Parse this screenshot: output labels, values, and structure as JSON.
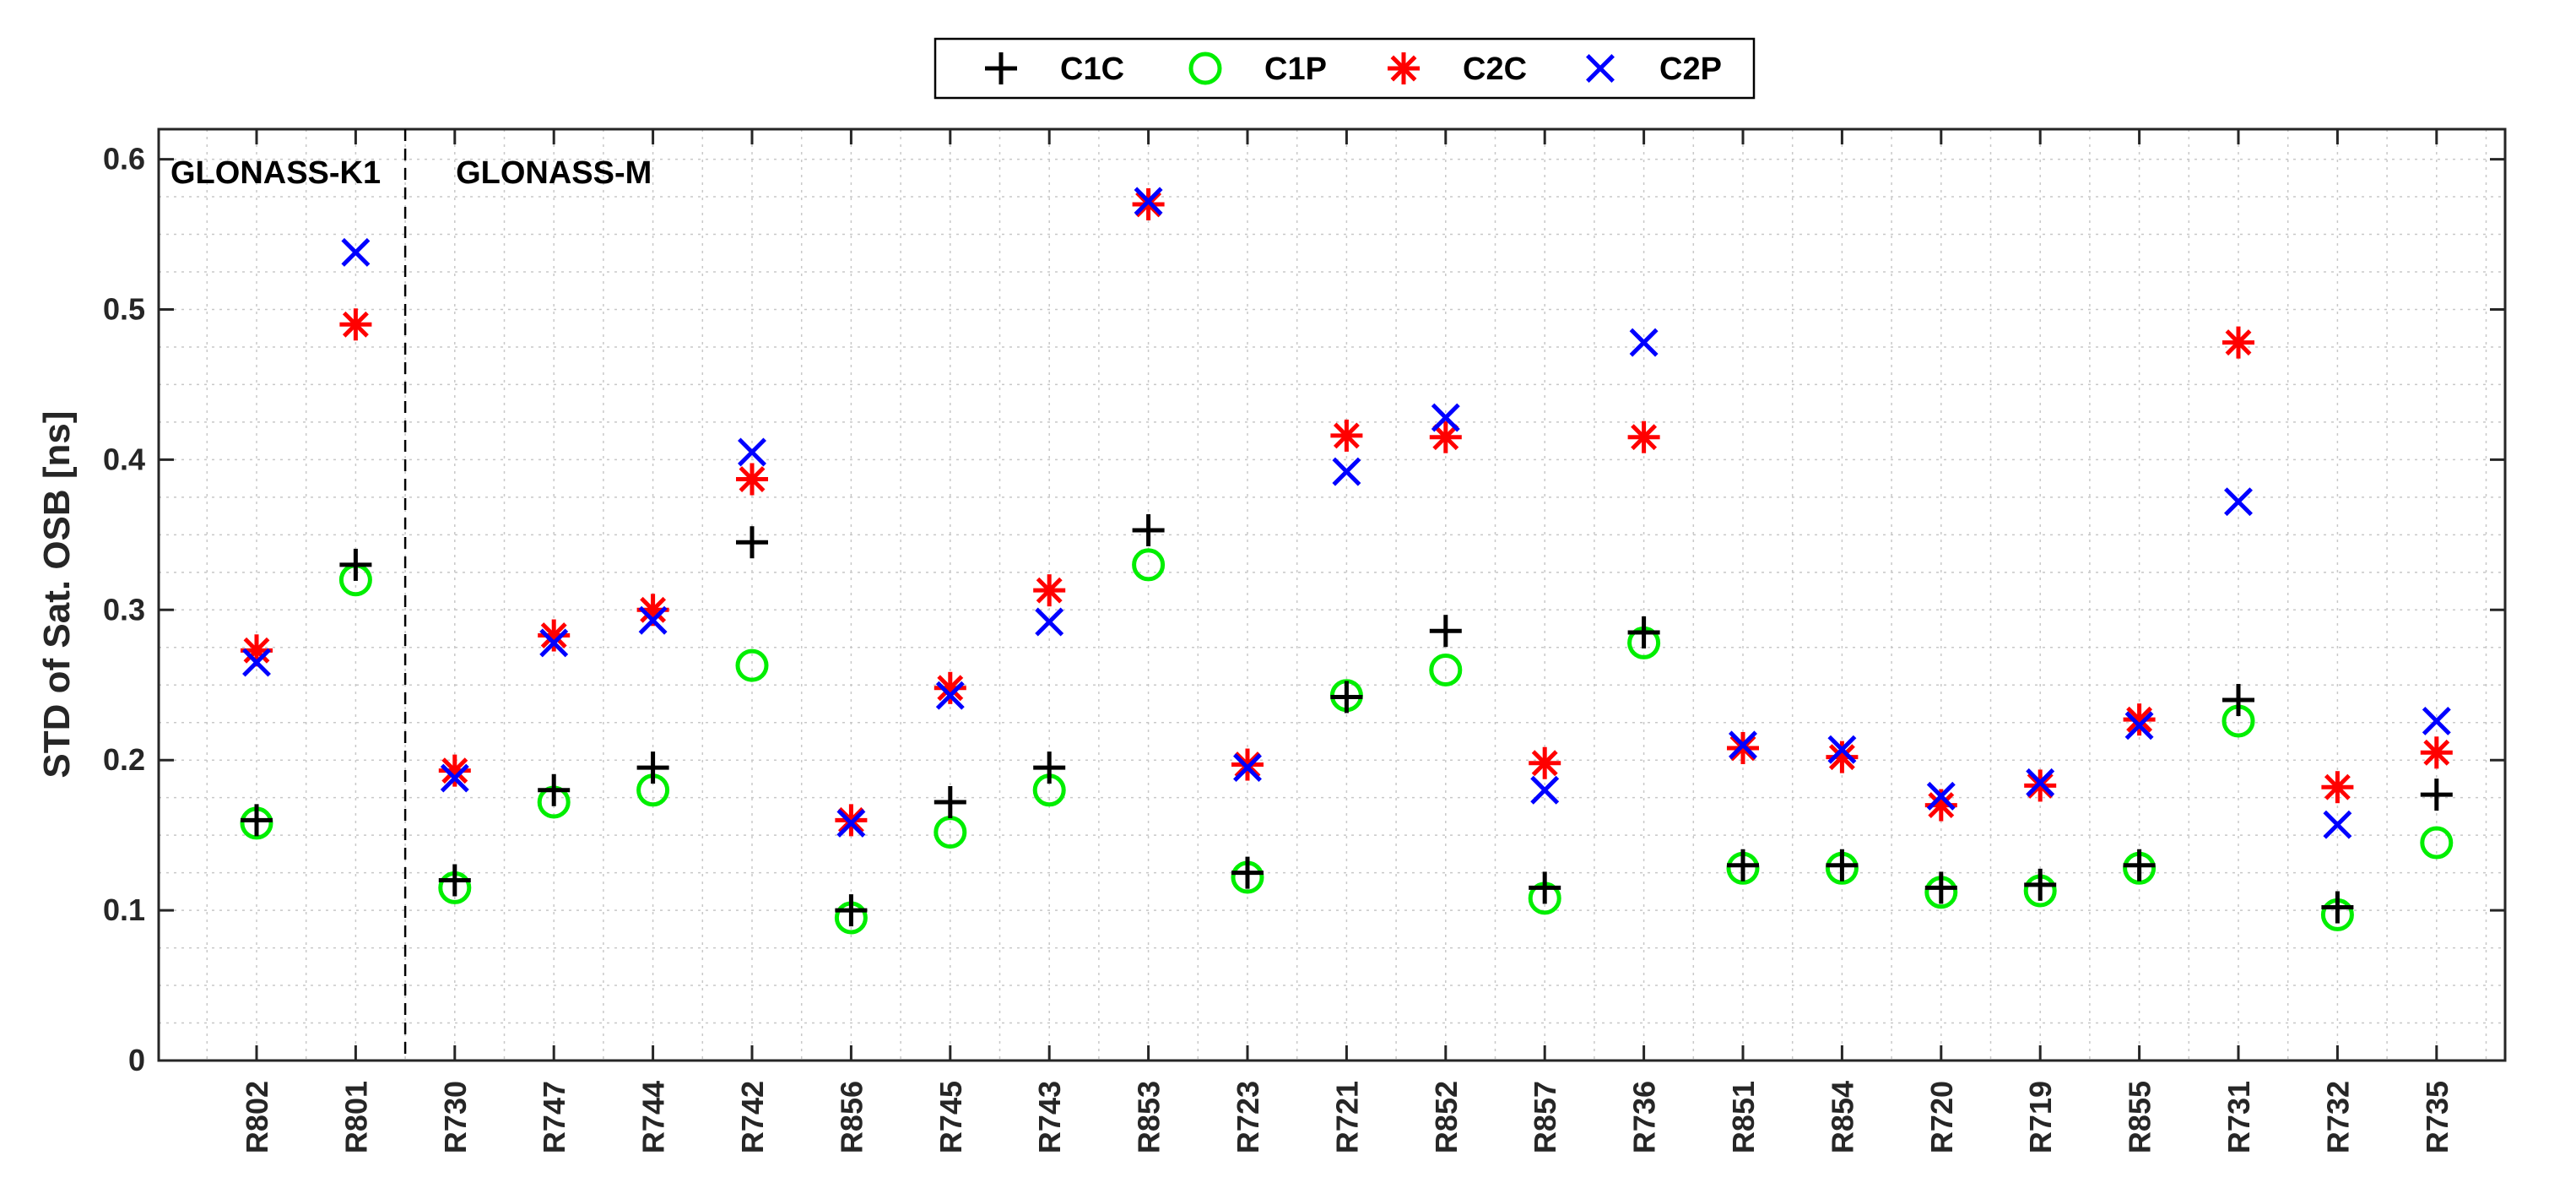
{
  "chart_data": {
    "type": "scatter",
    "title": "",
    "xlabel": "",
    "ylabel": "STD of Sat. OSB [ns]",
    "ylim": [
      0,
      0.62
    ],
    "yticks": [
      "0",
      "0.1",
      "0.2",
      "0.3",
      "0.4",
      "0.5",
      "0.6"
    ],
    "grid": true,
    "legend_position": "top-center",
    "categories": [
      "R802",
      "R801",
      "R730",
      "R747",
      "R744",
      "R742",
      "R856",
      "R745",
      "R743",
      "R853",
      "R723",
      "R721",
      "R852",
      "R857",
      "R736",
      "R851",
      "R854",
      "R720",
      "R719",
      "R855",
      "R731",
      "R732",
      "R735"
    ],
    "series": [
      {
        "name": "C1C",
        "marker": "plus",
        "color": "#000000",
        "values": [
          0.16,
          0.33,
          0.12,
          0.18,
          0.195,
          0.345,
          0.1,
          0.172,
          0.195,
          0.353,
          0.125,
          0.242,
          0.286,
          0.115,
          0.285,
          0.13,
          0.13,
          0.115,
          0.117,
          0.13,
          0.24,
          0.102,
          0.177
        ]
      },
      {
        "name": "C1P",
        "marker": "circle",
        "color": "#00ee00",
        "values": [
          0.158,
          0.32,
          0.115,
          0.172,
          0.18,
          0.263,
          0.095,
          0.152,
          0.18,
          0.33,
          0.122,
          0.243,
          0.26,
          0.108,
          0.278,
          0.128,
          0.128,
          0.112,
          0.113,
          0.128,
          0.226,
          0.097,
          0.145
        ]
      },
      {
        "name": "C2C",
        "marker": "asterisk",
        "color": "#ff0000",
        "values": [
          0.273,
          0.49,
          0.193,
          0.283,
          0.3,
          0.387,
          0.16,
          0.248,
          0.313,
          0.57,
          0.197,
          0.416,
          0.415,
          0.198,
          0.415,
          0.208,
          0.202,
          0.17,
          0.183,
          0.227,
          0.478,
          0.182,
          0.205
        ]
      },
      {
        "name": "C2P",
        "marker": "x",
        "color": "#0000ff",
        "values": [
          0.265,
          0.538,
          0.188,
          0.278,
          0.293,
          0.405,
          0.158,
          0.243,
          0.292,
          0.572,
          0.195,
          0.392,
          0.428,
          0.18,
          0.478,
          0.21,
          0.207,
          0.176,
          0.185,
          0.223,
          0.372,
          0.157,
          0.226
        ]
      }
    ],
    "annotations": [
      {
        "text": "GLONASS-K1",
        "anchor_category": "R802"
      },
      {
        "text": "GLONASS-M",
        "anchor_category": "R730"
      }
    ],
    "divider_after_category": "R801"
  }
}
